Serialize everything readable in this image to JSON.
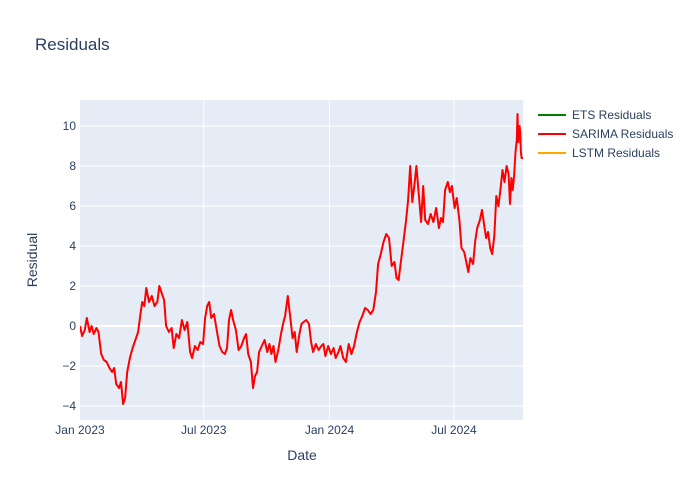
{
  "chart_data": {
    "type": "line",
    "title": "Residuals",
    "xlabel": "Date",
    "ylabel": "Residual",
    "xlim": [
      "2023-01-01",
      "2024-10-10"
    ],
    "ylim": [
      -4.7,
      11.3
    ],
    "x_ticks": [
      "2023-01-01",
      "2023-07-01",
      "2024-01-01",
      "2024-07-01"
    ],
    "x_tick_labels": [
      "Jan 2023",
      "Jul 2023",
      "Jan 2024",
      "Jul 2024"
    ],
    "y_ticks": [
      -4,
      -2,
      0,
      2,
      4,
      6,
      8,
      10
    ],
    "grid": true,
    "legend_position": "top-right",
    "series": [
      {
        "name": "ETS Residuals",
        "color": "#008000",
        "points": []
      },
      {
        "name": "SARIMA Residuals",
        "color": "#ff0000",
        "points": [
          [
            "2023-01-01",
            0.0
          ],
          [
            "2023-01-04",
            -0.5
          ],
          [
            "2023-01-08",
            -0.2
          ],
          [
            "2023-01-11",
            0.4
          ],
          [
            "2023-01-15",
            -0.3
          ],
          [
            "2023-01-18",
            0.0
          ],
          [
            "2023-01-21",
            -0.4
          ],
          [
            "2023-01-25",
            -0.1
          ],
          [
            "2023-01-28",
            -0.3
          ],
          [
            "2023-02-01",
            -1.4
          ],
          [
            "2023-02-05",
            -1.7
          ],
          [
            "2023-02-09",
            -1.8
          ],
          [
            "2023-02-13",
            -2.1
          ],
          [
            "2023-02-17",
            -2.3
          ],
          [
            "2023-02-20",
            -2.1
          ],
          [
            "2023-02-23",
            -2.9
          ],
          [
            "2023-02-27",
            -3.1
          ],
          [
            "2023-03-02",
            -2.8
          ],
          [
            "2023-03-05",
            -3.9
          ],
          [
            "2023-03-08",
            -3.6
          ],
          [
            "2023-03-11",
            -2.3
          ],
          [
            "2023-03-15",
            -1.6
          ],
          [
            "2023-03-19",
            -1.1
          ],
          [
            "2023-03-23",
            -0.7
          ],
          [
            "2023-03-27",
            -0.3
          ],
          [
            "2023-03-30",
            0.5
          ],
          [
            "2023-04-02",
            1.2
          ],
          [
            "2023-04-05",
            1.0
          ],
          [
            "2023-04-08",
            1.9
          ],
          [
            "2023-04-12",
            1.2
          ],
          [
            "2023-04-16",
            1.5
          ],
          [
            "2023-04-20",
            1.0
          ],
          [
            "2023-04-24",
            1.2
          ],
          [
            "2023-04-27",
            2.0
          ],
          [
            "2023-05-01",
            1.6
          ],
          [
            "2023-05-04",
            1.3
          ],
          [
            "2023-05-07",
            0.0
          ],
          [
            "2023-05-11",
            -0.3
          ],
          [
            "2023-05-15",
            -0.1
          ],
          [
            "2023-05-18",
            -1.1
          ],
          [
            "2023-05-22",
            -0.4
          ],
          [
            "2023-05-26",
            -0.6
          ],
          [
            "2023-05-30",
            0.3
          ],
          [
            "2023-06-03",
            -0.2
          ],
          [
            "2023-06-07",
            0.2
          ],
          [
            "2023-06-11",
            -1.3
          ],
          [
            "2023-06-14",
            -1.6
          ],
          [
            "2023-06-18",
            -1.0
          ],
          [
            "2023-06-22",
            -1.2
          ],
          [
            "2023-06-26",
            -0.8
          ],
          [
            "2023-06-30",
            -0.9
          ],
          [
            "2023-07-03",
            0.4
          ],
          [
            "2023-07-06",
            1.0
          ],
          [
            "2023-07-09",
            1.2
          ],
          [
            "2023-07-12",
            0.4
          ],
          [
            "2023-07-16",
            0.6
          ],
          [
            "2023-07-20",
            -0.2
          ],
          [
            "2023-07-24",
            -1.0
          ],
          [
            "2023-07-28",
            -1.3
          ],
          [
            "2023-08-01",
            -1.4
          ],
          [
            "2023-08-04",
            -1.1
          ],
          [
            "2023-08-07",
            0.3
          ],
          [
            "2023-08-10",
            0.8
          ],
          [
            "2023-08-13",
            0.3
          ],
          [
            "2023-08-17",
            -0.2
          ],
          [
            "2023-08-21",
            -1.2
          ],
          [
            "2023-08-25",
            -1.0
          ],
          [
            "2023-08-29",
            -0.6
          ],
          [
            "2023-09-01",
            -0.4
          ],
          [
            "2023-09-04",
            -1.4
          ],
          [
            "2023-09-08",
            -1.8
          ],
          [
            "2023-09-11",
            -3.1
          ],
          [
            "2023-09-14",
            -2.5
          ],
          [
            "2023-09-17",
            -2.3
          ],
          [
            "2023-09-20",
            -1.3
          ],
          [
            "2023-09-24",
            -1.0
          ],
          [
            "2023-09-28",
            -0.7
          ],
          [
            "2023-10-02",
            -1.3
          ],
          [
            "2023-10-05",
            -0.9
          ],
          [
            "2023-10-08",
            -1.4
          ],
          [
            "2023-10-11",
            -1.0
          ],
          [
            "2023-10-14",
            -1.8
          ],
          [
            "2023-10-18",
            -1.2
          ],
          [
            "2023-10-22",
            -0.4
          ],
          [
            "2023-10-25",
            0.1
          ],
          [
            "2023-10-28",
            0.5
          ],
          [
            "2023-11-01",
            1.5
          ],
          [
            "2023-11-04",
            0.6
          ],
          [
            "2023-11-08",
            -0.6
          ],
          [
            "2023-11-11",
            -0.3
          ],
          [
            "2023-11-14",
            -1.3
          ],
          [
            "2023-11-18",
            -0.4
          ],
          [
            "2023-11-21",
            0.1
          ],
          [
            "2023-11-24",
            0.2
          ],
          [
            "2023-11-28",
            0.3
          ],
          [
            "2023-12-02",
            0.1
          ],
          [
            "2023-12-05",
            -0.8
          ],
          [
            "2023-12-08",
            -1.3
          ],
          [
            "2023-12-12",
            -0.9
          ],
          [
            "2023-12-16",
            -1.2
          ],
          [
            "2023-12-20",
            -1.0
          ],
          [
            "2023-12-23",
            -0.9
          ],
          [
            "2023-12-26",
            -1.5
          ],
          [
            "2023-12-30",
            -1.0
          ],
          [
            "2024-01-03",
            -1.4
          ],
          [
            "2024-01-07",
            -1.1
          ],
          [
            "2024-01-10",
            -1.6
          ],
          [
            "2024-01-14",
            -1.3
          ],
          [
            "2024-01-17",
            -1.0
          ],
          [
            "2024-01-21",
            -1.6
          ],
          [
            "2024-01-25",
            -1.8
          ],
          [
            "2024-01-29",
            -0.9
          ],
          [
            "2024-02-02",
            -1.4
          ],
          [
            "2024-02-06",
            -1.0
          ],
          [
            "2024-02-10",
            -0.3
          ],
          [
            "2024-02-14",
            0.2
          ],
          [
            "2024-02-18",
            0.5
          ],
          [
            "2024-02-22",
            0.9
          ],
          [
            "2024-02-26",
            0.8
          ],
          [
            "2024-03-01",
            0.6
          ],
          [
            "2024-03-05",
            0.8
          ],
          [
            "2024-03-09",
            1.7
          ],
          [
            "2024-03-12",
            3.1
          ],
          [
            "2024-03-16",
            3.6
          ],
          [
            "2024-03-20",
            4.2
          ],
          [
            "2024-03-24",
            4.6
          ],
          [
            "2024-03-28",
            4.4
          ],
          [
            "2024-04-01",
            3.0
          ],
          [
            "2024-04-05",
            3.2
          ],
          [
            "2024-04-08",
            2.4
          ],
          [
            "2024-04-11",
            2.3
          ],
          [
            "2024-04-14",
            3.1
          ],
          [
            "2024-04-18",
            4.2
          ],
          [
            "2024-04-22",
            5.3
          ],
          [
            "2024-04-25",
            6.3
          ],
          [
            "2024-04-28",
            8.0
          ],
          [
            "2024-05-01",
            6.2
          ],
          [
            "2024-05-04",
            7.0
          ],
          [
            "2024-05-07",
            8.0
          ],
          [
            "2024-05-11",
            6.4
          ],
          [
            "2024-05-14",
            5.2
          ],
          [
            "2024-05-17",
            7.0
          ],
          [
            "2024-05-20",
            5.3
          ],
          [
            "2024-05-24",
            5.1
          ],
          [
            "2024-05-28",
            5.6
          ],
          [
            "2024-06-01",
            5.2
          ],
          [
            "2024-06-05",
            5.9
          ],
          [
            "2024-06-09",
            4.9
          ],
          [
            "2024-06-12",
            5.4
          ],
          [
            "2024-06-15",
            5.2
          ],
          [
            "2024-06-18",
            6.8
          ],
          [
            "2024-06-22",
            7.2
          ],
          [
            "2024-06-25",
            6.7
          ],
          [
            "2024-06-28",
            7.0
          ],
          [
            "2024-07-02",
            5.9
          ],
          [
            "2024-07-05",
            6.4
          ],
          [
            "2024-07-09",
            5.3
          ],
          [
            "2024-07-12",
            3.9
          ],
          [
            "2024-07-16",
            3.7
          ],
          [
            "2024-07-19",
            3.2
          ],
          [
            "2024-07-22",
            2.7
          ],
          [
            "2024-07-25",
            3.4
          ],
          [
            "2024-07-29",
            3.1
          ],
          [
            "2024-08-01",
            4.2
          ],
          [
            "2024-08-04",
            4.9
          ],
          [
            "2024-08-08",
            5.3
          ],
          [
            "2024-08-11",
            5.8
          ],
          [
            "2024-08-14",
            5.1
          ],
          [
            "2024-08-17",
            4.4
          ],
          [
            "2024-08-20",
            4.7
          ],
          [
            "2024-08-23",
            3.9
          ],
          [
            "2024-08-26",
            3.6
          ],
          [
            "2024-08-29",
            4.5
          ],
          [
            "2024-09-01",
            6.5
          ],
          [
            "2024-09-04",
            6.0
          ],
          [
            "2024-09-07",
            6.8
          ],
          [
            "2024-09-10",
            7.8
          ],
          [
            "2024-09-13",
            7.2
          ],
          [
            "2024-09-16",
            8.0
          ],
          [
            "2024-09-19",
            7.6
          ],
          [
            "2024-09-21",
            6.1
          ],
          [
            "2024-09-23",
            7.4
          ],
          [
            "2024-09-25",
            6.8
          ],
          [
            "2024-09-27",
            7.5
          ],
          [
            "2024-09-29",
            8.7
          ],
          [
            "2024-10-01",
            9.3
          ],
          [
            "2024-10-02",
            10.6
          ],
          [
            "2024-10-03",
            9.2
          ],
          [
            "2024-10-04",
            9.5
          ],
          [
            "2024-10-05",
            10.0
          ],
          [
            "2024-10-06",
            9.6
          ],
          [
            "2024-10-07",
            8.7
          ],
          [
            "2024-10-08",
            8.4
          ],
          [
            "2024-10-10",
            8.4
          ]
        ]
      },
      {
        "name": "LSTM Residuals",
        "color": "#ffa500",
        "points": []
      }
    ]
  }
}
